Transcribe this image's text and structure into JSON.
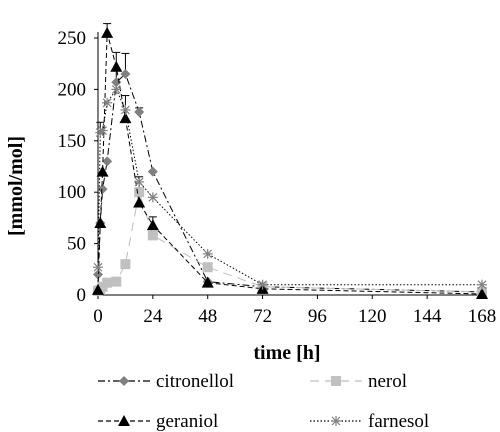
{
  "chart_data": {
    "type": "line",
    "xlabel": "time [h]",
    "ylabel": "[mmol/mol]",
    "xlim": [
      0,
      168
    ],
    "ylim": [
      0,
      250
    ],
    "xticks": [
      0,
      24,
      48,
      72,
      96,
      120,
      144,
      168
    ],
    "yticks": [
      0,
      50,
      100,
      150,
      200,
      250
    ],
    "grid": false,
    "legend_position": "bottom",
    "series": [
      {
        "name": "citronellol",
        "color": "#808080",
        "marker": "diamond",
        "dash": "dash-dot",
        "x": [
          0,
          1,
          2,
          4,
          8,
          12,
          18,
          24,
          48,
          72,
          168
        ],
        "y": [
          20,
          70,
          103,
          130,
          207,
          215,
          178,
          120,
          13,
          8,
          3
        ]
      },
      {
        "name": "nerol",
        "color": "#c0c0c0",
        "marker": "square",
        "dash": "long-dash",
        "x": [
          0,
          1,
          2,
          4,
          8,
          12,
          18,
          24,
          48,
          72,
          168
        ],
        "y": [
          4,
          5,
          8,
          12,
          13,
          30,
          100,
          58,
          27,
          8,
          3
        ]
      },
      {
        "name": "geraniol",
        "color": "#000000",
        "marker": "triangle",
        "dash": "dash",
        "x": [
          0,
          1,
          2,
          4,
          8,
          12,
          18,
          24,
          48,
          72,
          168
        ],
        "y": [
          5,
          70,
          120,
          255,
          222,
          172,
          90,
          68,
          12,
          6,
          1
        ]
      },
      {
        "name": "farnesol",
        "color": "#808080",
        "marker": "star",
        "dash": "dotted",
        "x": [
          0,
          1,
          2,
          4,
          8,
          12,
          18,
          24,
          48,
          72,
          168
        ],
        "y": [
          27,
          158,
          160,
          187,
          200,
          180,
          110,
          95,
          40,
          10,
          10
        ]
      }
    ],
    "error_bars": [
      {
        "series": "geraniol",
        "x": 4,
        "y": 255,
        "err": 9
      },
      {
        "series": "geraniol",
        "x": 8,
        "y": 222,
        "err": 14
      },
      {
        "series": "citronellol",
        "x": 12,
        "y": 215,
        "err": 20
      },
      {
        "series": "farnesol",
        "x": 8,
        "y": 200,
        "err": 18
      },
      {
        "series": "geraniol",
        "x": 12,
        "y": 172,
        "err": 22
      },
      {
        "series": "farnesol",
        "x": 1,
        "y": 158,
        "err": 10
      },
      {
        "series": "citronellol",
        "x": 18,
        "y": 178,
        "err": 4
      },
      {
        "series": "geraniol",
        "x": 24,
        "y": 68,
        "err": 8
      },
      {
        "series": "nerol",
        "x": 18,
        "y": 100,
        "err": 15
      }
    ]
  }
}
